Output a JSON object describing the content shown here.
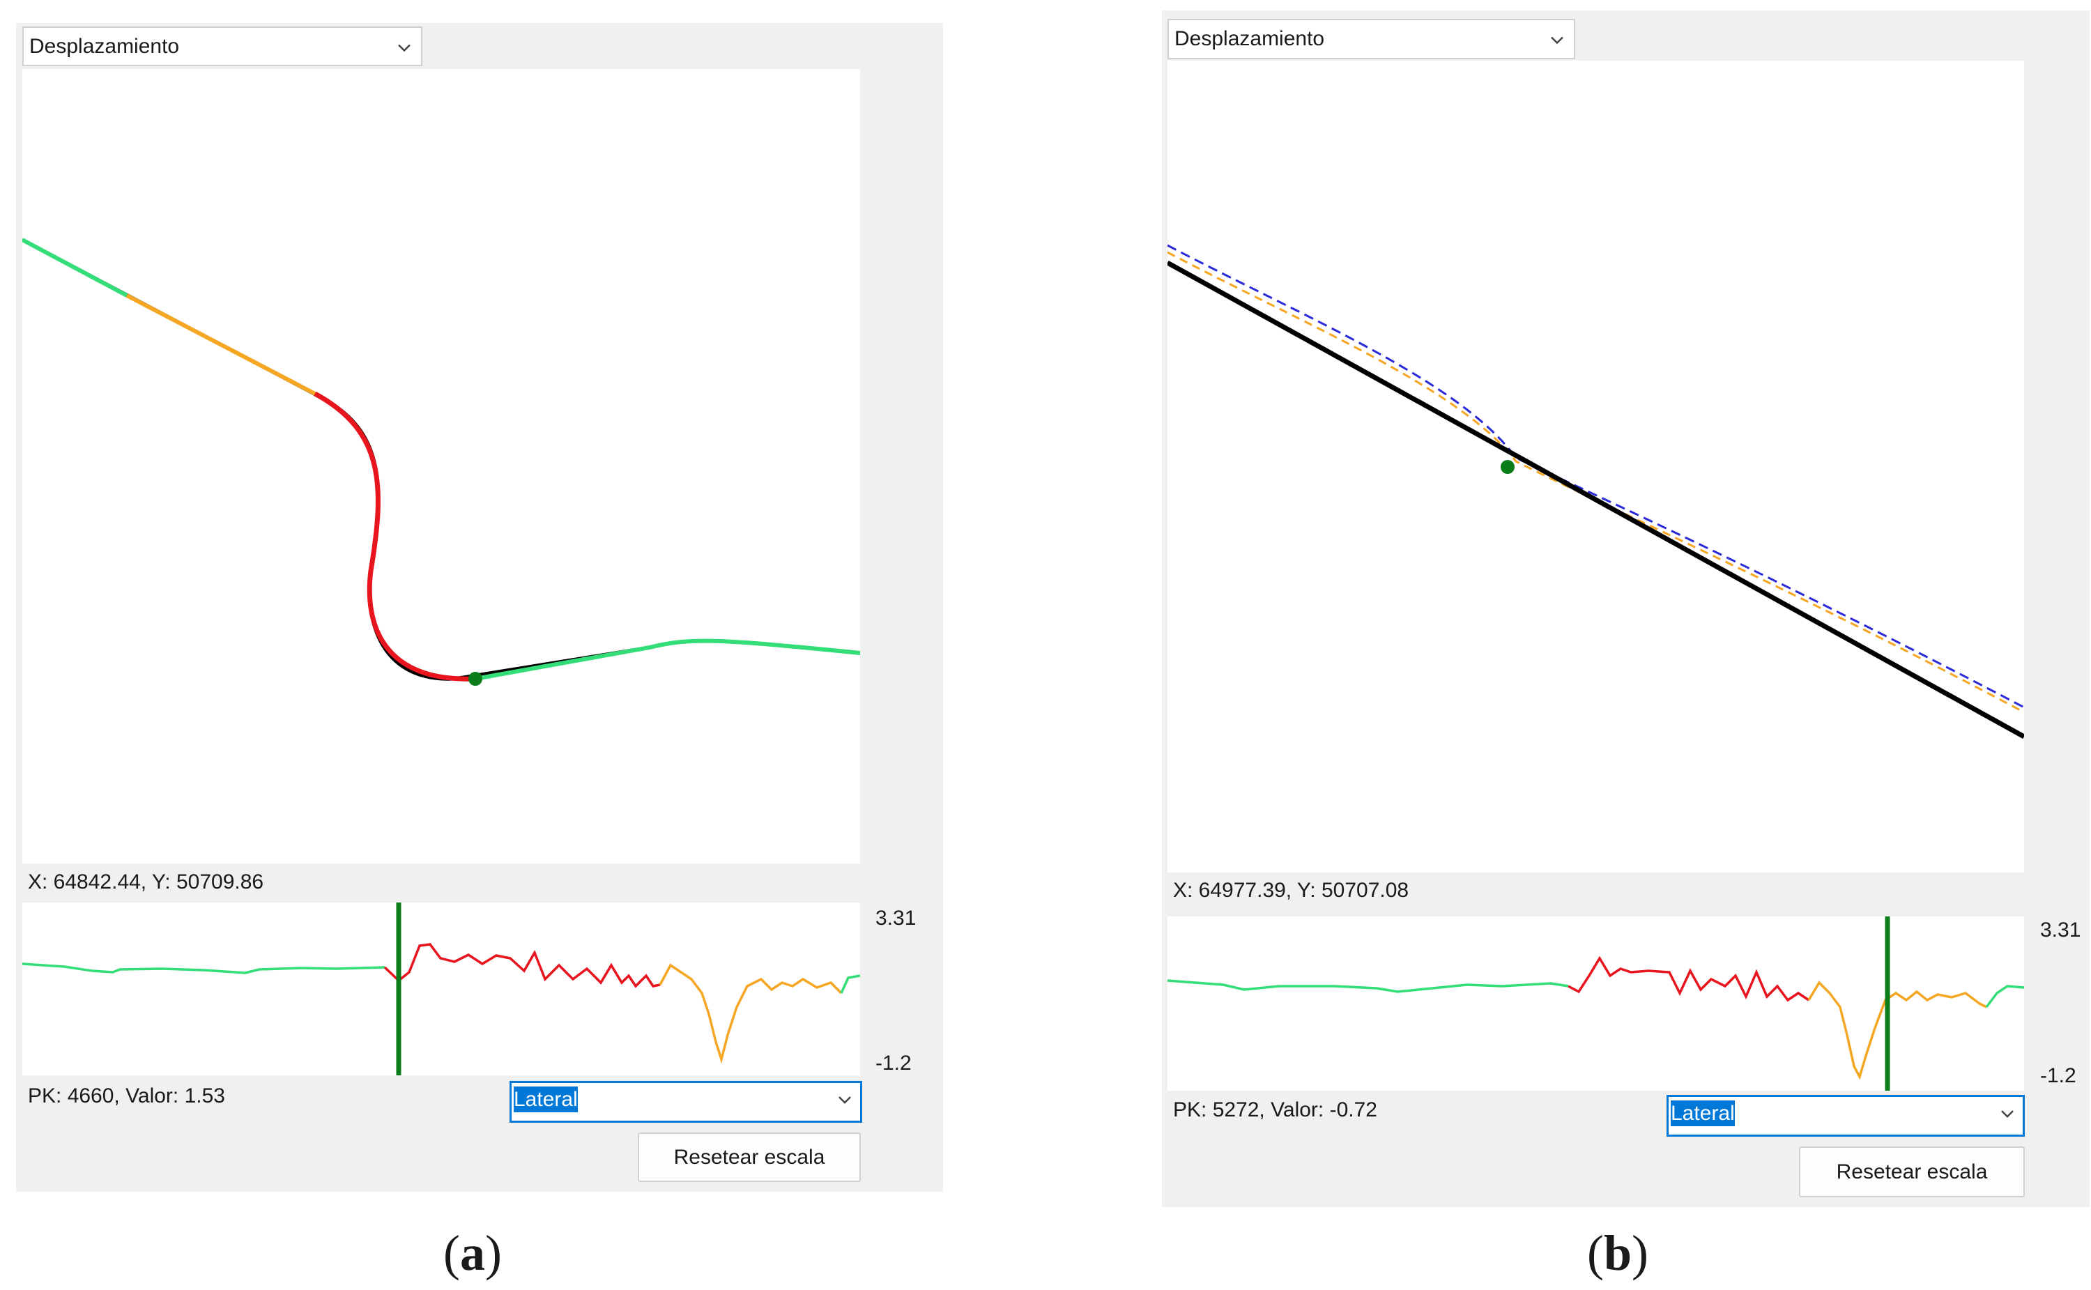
{
  "panels": [
    {
      "id": "a",
      "view_select": "Desplazamiento",
      "cursor_readout": "X: 64842.44, Y: 50709.86",
      "profile_max": "3.31",
      "profile_min": "-1.2",
      "profile_readout": "PK: 4660, Valor: 1.53",
      "component_select": "Lateral",
      "reset_button": "Resetear escala",
      "caption_open": "(",
      "caption_letter": "a",
      "caption_close": ")"
    },
    {
      "id": "b",
      "view_select": "Desplazamiento",
      "cursor_readout": "X: 64977.39, Y: 50707.08",
      "profile_max": "3.31",
      "profile_min": "-1.2",
      "profile_readout": "PK: 5272, Valor: -0.72",
      "component_select": "Lateral",
      "reset_button": "Resetear escala",
      "caption_open": "(",
      "caption_letter": "b",
      "caption_close": ")"
    }
  ],
  "icons": {
    "dropdown": "chevron-down-icon"
  },
  "colors": {
    "tangent": "#33dd77",
    "transition": "#f5a623",
    "curve": "#e8141e",
    "marker": "#0a7d1a",
    "axis": "#000000",
    "offset": "#2a2ad8",
    "select_accent": "#0078d7"
  }
}
